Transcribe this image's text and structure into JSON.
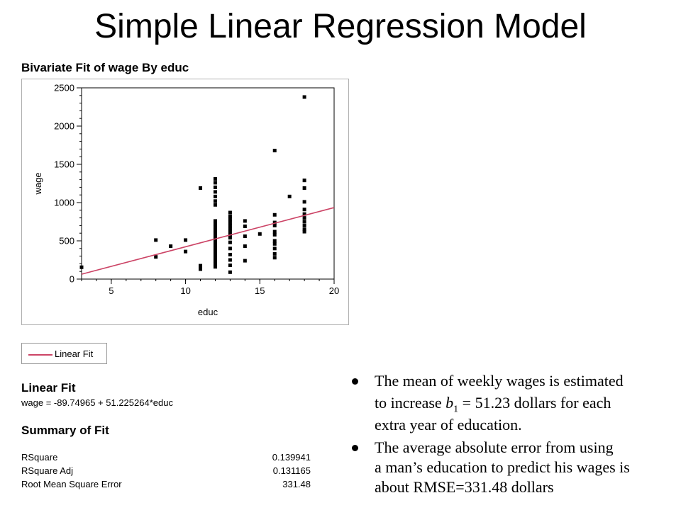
{
  "slide": {
    "title": "Simple Linear Regression Model"
  },
  "report": {
    "title": "Bivariate Fit of wage By educ",
    "legend_label": "Linear Fit",
    "linear_fit_heading": "Linear Fit",
    "equation": "wage = -89.74965 + 51.225264*educ",
    "summary_heading": "Summary of Fit",
    "summary_rows": [
      {
        "label": "RSquare",
        "value": "0.139941"
      },
      {
        "label": "RSquare Adj",
        "value": "0.131165"
      },
      {
        "label": "Root Mean Square Error",
        "value": "331.48"
      }
    ]
  },
  "notes": {
    "bullet1_line1": "The mean of weekly wages is estimated",
    "bullet1_line2_pre": "to increase ",
    "bullet1_math_var": "b",
    "bullet1_math_sub": "1",
    "bullet1_math_rest": " = 51.23",
    "bullet1_line2_post": " dollars for each",
    "bullet1_line3": "extra year of education.",
    "bullet2_line1": "The average absolute error from using",
    "bullet2_line2": "a man’s education to predict his wages is",
    "bullet2_line3": "about RMSE=331.48 dollars"
  },
  "chart_data": {
    "type": "scatter",
    "xlabel": "educ",
    "ylabel": "wage",
    "xlim": [
      3,
      20
    ],
    "ylim": [
      0,
      2500
    ],
    "x_ticks": [
      5,
      10,
      15,
      20
    ],
    "y_ticks": [
      0,
      500,
      1000,
      1500,
      2000,
      2500
    ],
    "x_minor_step": 1,
    "y_minor_step": 100,
    "grid": false,
    "colors": {
      "points": "#000000",
      "fit_line": "#cc4466"
    },
    "fit": {
      "name": "Linear Fit",
      "intercept": -89.74965,
      "slope": 51.225264,
      "x_range": [
        3,
        20
      ]
    },
    "points": [
      {
        "x": 3,
        "y": 155
      },
      {
        "x": 8,
        "y": 510
      },
      {
        "x": 8,
        "y": 290
      },
      {
        "x": 9,
        "y": 430
      },
      {
        "x": 10,
        "y": 510
      },
      {
        "x": 10,
        "y": 360
      },
      {
        "x": 11,
        "y": 1190
      },
      {
        "x": 11,
        "y": 175
      },
      {
        "x": 11,
        "y": 130
      },
      {
        "x": 12,
        "y": 1310
      },
      {
        "x": 12,
        "y": 1260
      },
      {
        "x": 12,
        "y": 1200
      },
      {
        "x": 12,
        "y": 1140
      },
      {
        "x": 12,
        "y": 1080
      },
      {
        "x": 12,
        "y": 1020
      },
      {
        "x": 12,
        "y": 970
      },
      {
        "x": 12,
        "y": 760
      },
      {
        "x": 12,
        "y": 720
      },
      {
        "x": 12,
        "y": 680
      },
      {
        "x": 12,
        "y": 640
      },
      {
        "x": 12,
        "y": 600
      },
      {
        "x": 12,
        "y": 560
      },
      {
        "x": 12,
        "y": 520
      },
      {
        "x": 12,
        "y": 480
      },
      {
        "x": 12,
        "y": 440
      },
      {
        "x": 12,
        "y": 400
      },
      {
        "x": 12,
        "y": 360
      },
      {
        "x": 12,
        "y": 320
      },
      {
        "x": 12,
        "y": 280
      },
      {
        "x": 12,
        "y": 240
      },
      {
        "x": 12,
        "y": 200
      },
      {
        "x": 12,
        "y": 160
      },
      {
        "x": 13,
        "y": 870
      },
      {
        "x": 13,
        "y": 820
      },
      {
        "x": 13,
        "y": 780
      },
      {
        "x": 13,
        "y": 740
      },
      {
        "x": 13,
        "y": 700
      },
      {
        "x": 13,
        "y": 660
      },
      {
        "x": 13,
        "y": 620
      },
      {
        "x": 13,
        "y": 580
      },
      {
        "x": 13,
        "y": 540
      },
      {
        "x": 13,
        "y": 480
      },
      {
        "x": 13,
        "y": 400
      },
      {
        "x": 13,
        "y": 320
      },
      {
        "x": 13,
        "y": 250
      },
      {
        "x": 13,
        "y": 180
      },
      {
        "x": 13,
        "y": 90
      },
      {
        "x": 14,
        "y": 760
      },
      {
        "x": 14,
        "y": 690
      },
      {
        "x": 14,
        "y": 560
      },
      {
        "x": 14,
        "y": 430
      },
      {
        "x": 14,
        "y": 240
      },
      {
        "x": 15,
        "y": 590
      },
      {
        "x": 16,
        "y": 1680
      },
      {
        "x": 16,
        "y": 840
      },
      {
        "x": 16,
        "y": 740
      },
      {
        "x": 16,
        "y": 700
      },
      {
        "x": 16,
        "y": 620
      },
      {
        "x": 16,
        "y": 580
      },
      {
        "x": 16,
        "y": 500
      },
      {
        "x": 16,
        "y": 460
      },
      {
        "x": 16,
        "y": 400
      },
      {
        "x": 16,
        "y": 330
      },
      {
        "x": 16,
        "y": 280
      },
      {
        "x": 17,
        "y": 1080
      },
      {
        "x": 18,
        "y": 2380
      },
      {
        "x": 18,
        "y": 1290
      },
      {
        "x": 18,
        "y": 1190
      },
      {
        "x": 18,
        "y": 1010
      },
      {
        "x": 18,
        "y": 910
      },
      {
        "x": 18,
        "y": 850
      },
      {
        "x": 18,
        "y": 800
      },
      {
        "x": 18,
        "y": 750
      },
      {
        "x": 18,
        "y": 700
      },
      {
        "x": 18,
        "y": 650
      },
      {
        "x": 18,
        "y": 620
      }
    ]
  }
}
